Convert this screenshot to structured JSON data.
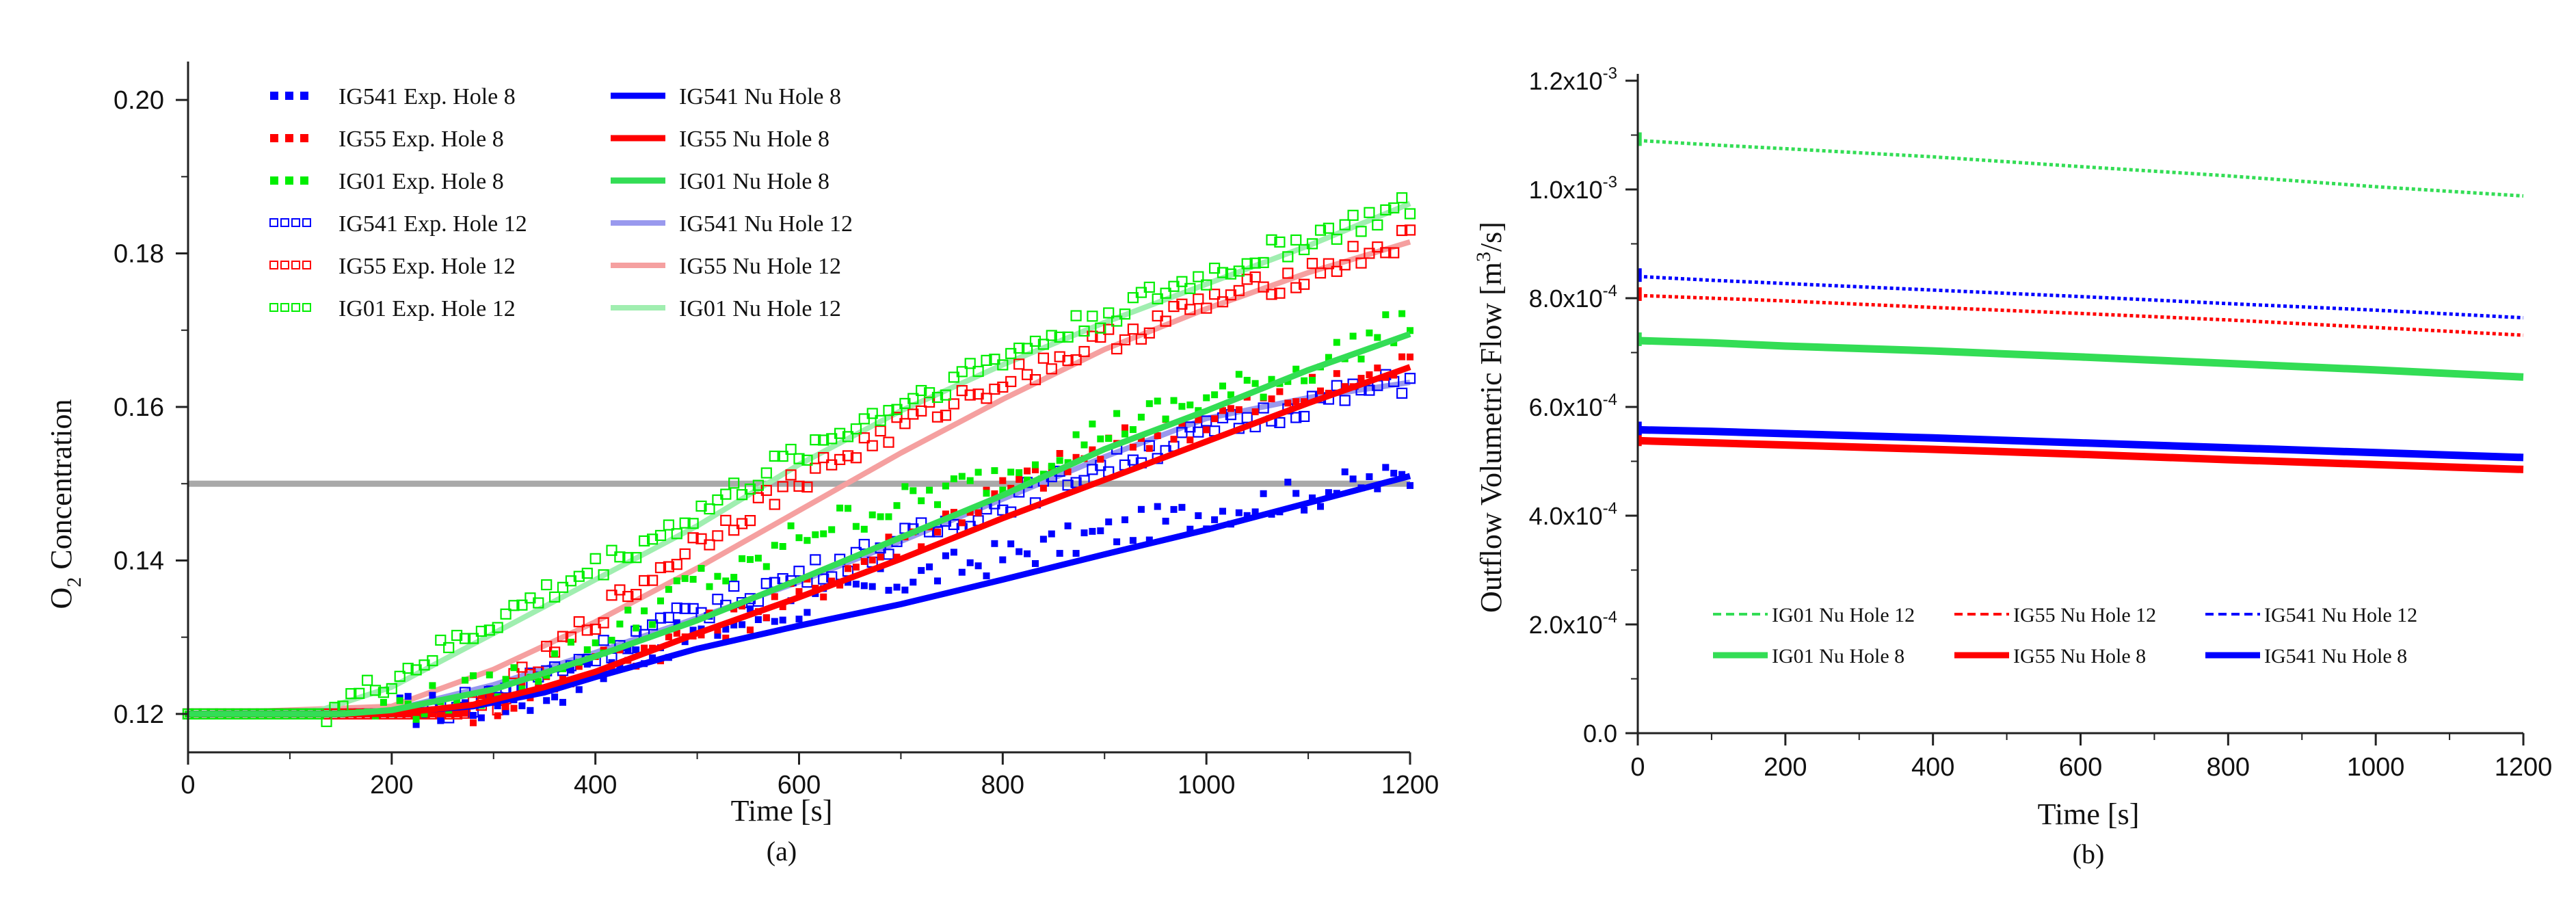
{
  "chart_data": [
    {
      "type": "line",
      "panel_label": "(a)",
      "title": "",
      "xlabel": "Time [s]",
      "ylabel_main": "O",
      "ylabel_sub": "2",
      "ylabel_rest": " Concentration",
      "xlim": [
        0,
        1200
      ],
      "ylim": [
        0.115,
        0.205
      ],
      "xticks": [
        0,
        200,
        400,
        600,
        800,
        1000,
        1200
      ],
      "yticks": [
        0.12,
        0.14,
        0.16,
        0.18,
        0.2
      ],
      "ytick_labels": [
        "0.12",
        "0.14",
        "0.16",
        "0.18",
        "0.20"
      ],
      "reference_line": {
        "y": 0.15,
        "color": "#a9a9a9"
      },
      "legend_position": "top-left",
      "series": [
        {
          "name": "IG541 Exp. Hole 8",
          "style": "exp8",
          "color": "#0000ff",
          "x": [
            0,
            150,
            200,
            280,
            350,
            400,
            450,
            500,
            600,
            700,
            800,
            900,
            1000,
            1100,
            1200
          ],
          "values": [
            0.12,
            0.12,
            0.1203,
            0.121,
            0.1225,
            0.1255,
            0.1285,
            0.1305,
            0.1342,
            0.1375,
            0.1405,
            0.1435,
            0.1463,
            0.1487,
            0.151
          ]
        },
        {
          "name": "IG55 Exp. Hole 8",
          "style": "exp8",
          "color": "#ff0000",
          "x": [
            0,
            270,
            320,
            400,
            500,
            600,
            700,
            800,
            900,
            1000,
            1100,
            1200
          ],
          "values": [
            0.12,
            0.12,
            0.1225,
            0.1265,
            0.1305,
            0.1355,
            0.1425,
            0.149,
            0.1545,
            0.1585,
            0.1618,
            0.1655
          ]
        },
        {
          "name": "IG01 Exp. Hole 8",
          "style": "exp8",
          "color": "#00ee00",
          "x": [
            0,
            150,
            200,
            300,
            400,
            500,
            550,
            600,
            700,
            800,
            900,
            1000,
            1100,
            1200
          ],
          "values": [
            0.12,
            0.12,
            0.1205,
            0.1235,
            0.129,
            0.1375,
            0.1385,
            0.1435,
            0.1475,
            0.151,
            0.157,
            0.161,
            0.165,
            0.1715
          ]
        },
        {
          "name": "IG541 Exp. Hole 12",
          "style": "exp12",
          "color": "#0000ff",
          "x": [
            0,
            230,
            300,
            400,
            500,
            600,
            700,
            800,
            900,
            1000,
            1100,
            1200
          ],
          "values": [
            0.12,
            0.12,
            0.1225,
            0.128,
            0.1335,
            0.138,
            0.1425,
            0.1475,
            0.1525,
            0.1568,
            0.1605,
            0.1635
          ]
        },
        {
          "name": "IG55 Exp. Hole 12",
          "style": "exp12",
          "color": "#ff0000",
          "x": [
            0,
            270,
            300,
            400,
            500,
            600,
            700,
            800,
            900,
            1000,
            1100,
            1200
          ],
          "values": [
            0.12,
            0.12,
            0.1215,
            0.1325,
            0.1425,
            0.1505,
            0.1575,
            0.1635,
            0.1685,
            0.1735,
            0.1775,
            0.182
          ]
        },
        {
          "name": "IG01 Exp. Hole 12",
          "style": "exp12",
          "color": "#00ee00",
          "x": [
            0,
            130,
            200,
            300,
            400,
            500,
            600,
            700,
            800,
            900,
            1000,
            1100,
            1200
          ],
          "values": [
            0.12,
            0.12,
            0.1245,
            0.132,
            0.139,
            0.146,
            0.154,
            0.1605,
            0.1665,
            0.172,
            0.177,
            0.182,
            0.186
          ]
        },
        {
          "name": "IG541 Nu Hole 8",
          "style": "nu8",
          "color": "#0000ff",
          "x": [
            0,
            150,
            200,
            280,
            350,
            400,
            500,
            600,
            700,
            800,
            900,
            1000,
            1100,
            1200
          ],
          "values": [
            0.12,
            0.12,
            0.1202,
            0.121,
            0.1228,
            0.1248,
            0.1285,
            0.1315,
            0.1343,
            0.1375,
            0.1408,
            0.144,
            0.1475,
            0.151
          ]
        },
        {
          "name": "IG55 Nu Hole 8",
          "style": "nu8",
          "color": "#ff0000",
          "x": [
            0,
            200,
            280,
            350,
            400,
            500,
            600,
            700,
            800,
            900,
            1000,
            1100,
            1200
          ],
          "values": [
            0.12,
            0.12,
            0.1212,
            0.1235,
            0.1255,
            0.1305,
            0.1352,
            0.1402,
            0.1455,
            0.1505,
            0.1555,
            0.1605,
            0.1652
          ]
        },
        {
          "name": "IG01 Nu Hole 8",
          "style": "nu8",
          "color": "#33dd55",
          "x": [
            0,
            150,
            200,
            300,
            400,
            500,
            600,
            700,
            800,
            900,
            1000,
            1100,
            1200
          ],
          "values": [
            0.12,
            0.12,
            0.1205,
            0.1232,
            0.1275,
            0.1322,
            0.1375,
            0.143,
            0.1485,
            0.1545,
            0.1595,
            0.1648,
            0.1695
          ]
        },
        {
          "name": "IG541 Nu Hole 12",
          "style": "nu12",
          "color": "#9999ee",
          "x": [
            0,
            200,
            300,
            400,
            500,
            600,
            700,
            800,
            900,
            1000,
            1100,
            1200
          ],
          "values": [
            0.12,
            0.1205,
            0.1238,
            0.128,
            0.1325,
            0.1372,
            0.1425,
            0.148,
            0.1535,
            0.1585,
            0.1612,
            0.1632
          ]
        },
        {
          "name": "IG55 Nu Hole 12",
          "style": "nu12",
          "color": "#f5a0a0",
          "x": [
            0,
            200,
            300,
            400,
            500,
            600,
            700,
            800,
            900,
            1000,
            1100,
            1200
          ],
          "values": [
            0.12,
            0.121,
            0.1258,
            0.132,
            0.139,
            0.1465,
            0.154,
            0.161,
            0.1675,
            0.1728,
            0.1775,
            0.1815
          ]
        },
        {
          "name": "IG01 Nu Hole 12",
          "style": "nu12",
          "color": "#a0eeb0",
          "x": [
            0,
            130,
            200,
            300,
            400,
            500,
            600,
            700,
            800,
            900,
            1000,
            1100,
            1200
          ],
          "values": [
            0.12,
            0.1205,
            0.1235,
            0.1305,
            0.1375,
            0.1445,
            0.1525,
            0.1595,
            0.1655,
            0.171,
            0.176,
            0.181,
            0.1865
          ]
        }
      ]
    },
    {
      "type": "line",
      "panel_label": "(b)",
      "title": "",
      "xlabel": "Time [s]",
      "ylabel_main": "Outflow Volumetric Flow [m",
      "ylabel_sup": "3",
      "ylabel_rest": "/s]",
      "xlim": [
        0,
        1200
      ],
      "ylim": [
        0,
        0.0012
      ],
      "xticks": [
        0,
        200,
        400,
        600,
        800,
        1000,
        1200
      ],
      "yticks": [
        0,
        0.0002,
        0.0004,
        0.0006,
        0.0008,
        0.001,
        0.0012
      ],
      "ytick_mantissa": [
        "0.0",
        "2.0x10",
        "4.0x10",
        "6.0x10",
        "8.0x10",
        "1.0x10",
        "1.2x10"
      ],
      "ytick_exponent": [
        "",
        "-4",
        "-4",
        "-4",
        "-4",
        "-3",
        "-3"
      ],
      "legend_position": "bottom-center",
      "series": [
        {
          "name": "IG01 Nu Hole 12",
          "style": "dot12",
          "color": "#33dd55",
          "x": [
            0,
            100,
            200,
            400,
            600,
            800,
            1000,
            1200
          ],
          "values": [
            0.00109,
            0.001082,
            0.001075,
            0.00106,
            0.001042,
            0.001025,
            0.001005,
            0.000988
          ]
        },
        {
          "name": "IG55 Nu Hole 12",
          "style": "dot12",
          "color": "#ff0000",
          "x": [
            0,
            100,
            200,
            400,
            600,
            800,
            1000,
            1200
          ],
          "values": [
            0.000805,
            0.0008,
            0.000795,
            0.000783,
            0.000772,
            0.00076,
            0.000746,
            0.000732
          ]
        },
        {
          "name": "IG541 Nu Hole 12",
          "style": "dot12",
          "color": "#0000ff",
          "x": [
            0,
            100,
            200,
            400,
            600,
            800,
            1000,
            1200
          ],
          "values": [
            0.00084,
            0.000833,
            0.000827,
            0.000815,
            0.000803,
            0.00079,
            0.000778,
            0.000764
          ]
        },
        {
          "name": "IG01 Nu Hole 8",
          "style": "solid8",
          "color": "#33dd55",
          "x": [
            0,
            100,
            200,
            400,
            600,
            800,
            1000,
            1200
          ],
          "values": [
            0.000722,
            0.000718,
            0.000712,
            0.000703,
            0.000692,
            0.00068,
            0.000668,
            0.000655
          ]
        },
        {
          "name": "IG55 Nu Hole 8",
          "style": "solid8",
          "color": "#ff0000",
          "x": [
            0,
            100,
            200,
            400,
            600,
            800,
            1000,
            1200
          ],
          "values": [
            0.000538,
            0.000534,
            0.00053,
            0.000522,
            0.000513,
            0.000503,
            0.000494,
            0.000485
          ]
        },
        {
          "name": "IG541 Nu Hole 8",
          "style": "solid8",
          "color": "#0000ff",
          "x": [
            0,
            100,
            200,
            400,
            600,
            800,
            1000,
            1200
          ],
          "values": [
            0.000558,
            0.000555,
            0.000551,
            0.000543,
            0.000534,
            0.000525,
            0.000516,
            0.000507
          ]
        }
      ]
    }
  ]
}
